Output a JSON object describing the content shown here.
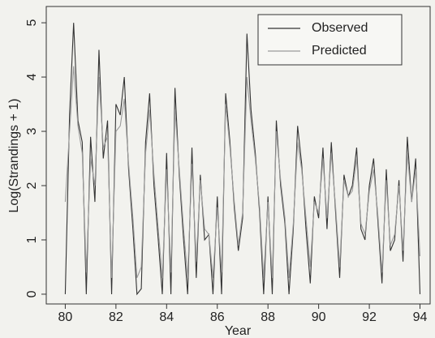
{
  "chart_data": {
    "type": "line",
    "x_label": "Year",
    "y_label": "Log(Strandings + 1)",
    "x": [
      80,
      80.17,
      80.33,
      80.5,
      80.67,
      80.83,
      81,
      81.17,
      81.33,
      81.5,
      81.67,
      81.83,
      82,
      82.17,
      82.33,
      82.5,
      82.67,
      82.83,
      83,
      83.17,
      83.33,
      83.5,
      83.67,
      83.83,
      84,
      84.17,
      84.33,
      84.5,
      84.67,
      84.83,
      85,
      85.17,
      85.33,
      85.5,
      85.67,
      85.83,
      86,
      86.17,
      86.33,
      86.5,
      86.67,
      86.83,
      87,
      87.17,
      87.33,
      87.5,
      87.67,
      87.83,
      88,
      88.17,
      88.33,
      88.5,
      88.67,
      88.83,
      89,
      89.17,
      89.33,
      89.5,
      89.67,
      89.83,
      90,
      90.17,
      90.33,
      90.5,
      90.67,
      90.83,
      91,
      91.17,
      91.33,
      91.5,
      91.67,
      91.83,
      92,
      92.17,
      92.33,
      92.5,
      92.67,
      92.83,
      93,
      93.17,
      93.33,
      93.5,
      93.67,
      93.83,
      94
    ],
    "series": [
      {
        "name": "Observed",
        "color": "#333333",
        "values": [
          0,
          3.3,
          5.0,
          3.2,
          2.8,
          0,
          2.9,
          1.7,
          4.5,
          2.5,
          3.2,
          0,
          3.5,
          3.3,
          4.0,
          2.3,
          1.2,
          0,
          0.1,
          2.8,
          3.7,
          2.0,
          1.0,
          0,
          2.6,
          0,
          3.8,
          2.2,
          1.0,
          0,
          2.7,
          0.3,
          2.2,
          1.0,
          1.1,
          0,
          1.8,
          0,
          3.7,
          2.8,
          1.6,
          0.8,
          1.4,
          4.8,
          3.4,
          2.6,
          1.5,
          0,
          1.8,
          0,
          3.2,
          2.0,
          1.3,
          0,
          1.2,
          3.1,
          2.4,
          1.2,
          0.2,
          1.8,
          1.4,
          2.7,
          1.2,
          2.8,
          1.5,
          0.3,
          2.2,
          1.8,
          2.0,
          2.7,
          1.2,
          1.0,
          2.0,
          2.5,
          1.4,
          0.2,
          2.3,
          0.8,
          1.0,
          2.1,
          0.6,
          2.9,
          1.7,
          2.5,
          0.0
        ]
      },
      {
        "name": "Predicted",
        "color": "#9a9a9a",
        "values": [
          1.7,
          3.0,
          4.2,
          3.1,
          2.6,
          0.4,
          2.5,
          2.0,
          4.0,
          2.7,
          2.9,
          0.3,
          3.0,
          3.1,
          3.6,
          2.4,
          1.4,
          0.3,
          0.5,
          2.6,
          3.4,
          2.2,
          1.2,
          0.3,
          2.3,
          0.4,
          3.4,
          2.3,
          1.2,
          0.3,
          2.4,
          0.6,
          2.1,
          1.2,
          1.1,
          0.3,
          1.6,
          0.4,
          3.5,
          2.7,
          1.7,
          0.9,
          1.5,
          4.0,
          3.2,
          2.5,
          1.6,
          0.3,
          1.7,
          0.3,
          3.0,
          2.1,
          1.4,
          0.3,
          1.3,
          2.8,
          2.3,
          1.4,
          0.5,
          1.7,
          1.5,
          2.5,
          1.4,
          2.6,
          1.6,
          0.5,
          2.1,
          1.8,
          1.9,
          2.5,
          1.3,
          1.1,
          1.9,
          2.3,
          1.5,
          0.4,
          2.1,
          0.9,
          1.1,
          2.0,
          0.8,
          2.6,
          1.7,
          2.3,
          0.7
        ]
      }
    ],
    "xlim": [
      79.25,
      94.4
    ],
    "ylim": [
      -0.18,
      5.3
    ],
    "xticks": [
      80,
      82,
      84,
      86,
      88,
      90,
      92,
      94
    ],
    "yticks": [
      0,
      1,
      2,
      3,
      4,
      5
    ],
    "legend": "top-right"
  }
}
